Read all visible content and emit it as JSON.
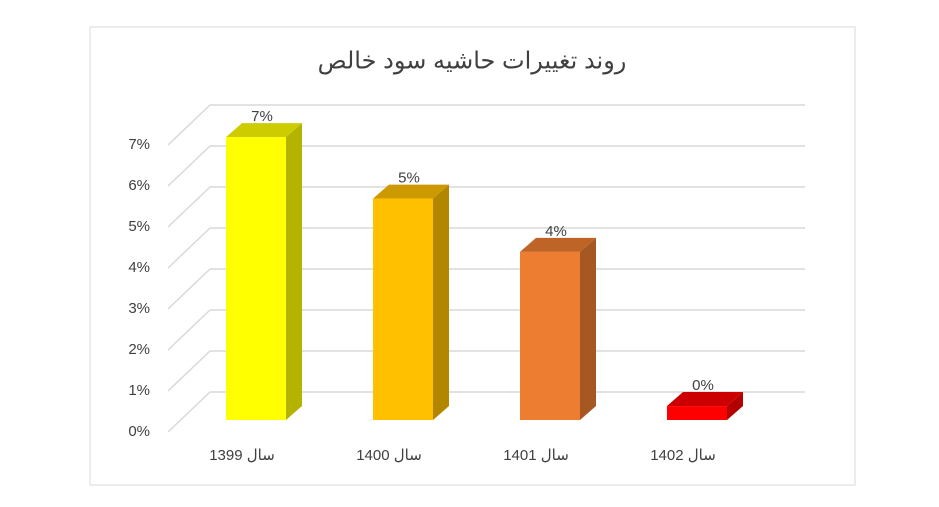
{
  "chart_data": {
    "type": "bar3d",
    "title": "روند تغییرات حاشیه سود خالص",
    "categories": [
      "سال 1399",
      "سال 1400",
      "سال 1401",
      "سال 1402"
    ],
    "values": [
      6.9,
      5.4,
      4.1,
      0.34
    ],
    "value_labels": [
      "7%",
      "5%",
      "4%",
      "0%"
    ],
    "colors": [
      "#ffff00",
      "#ffc000",
      "#ed7d31",
      "#ff0000"
    ],
    "ylim": [
      0,
      7
    ],
    "yticks": [
      {
        "value": 0,
        "label": "0%"
      },
      {
        "value": 1,
        "label": "1%"
      },
      {
        "value": 2,
        "label": "2%"
      },
      {
        "value": 3,
        "label": "3%"
      },
      {
        "value": 4,
        "label": "4%"
      },
      {
        "value": 5,
        "label": "5%"
      },
      {
        "value": 6,
        "label": "6%"
      },
      {
        "value": 7,
        "label": "7%"
      }
    ],
    "grid": true
  }
}
